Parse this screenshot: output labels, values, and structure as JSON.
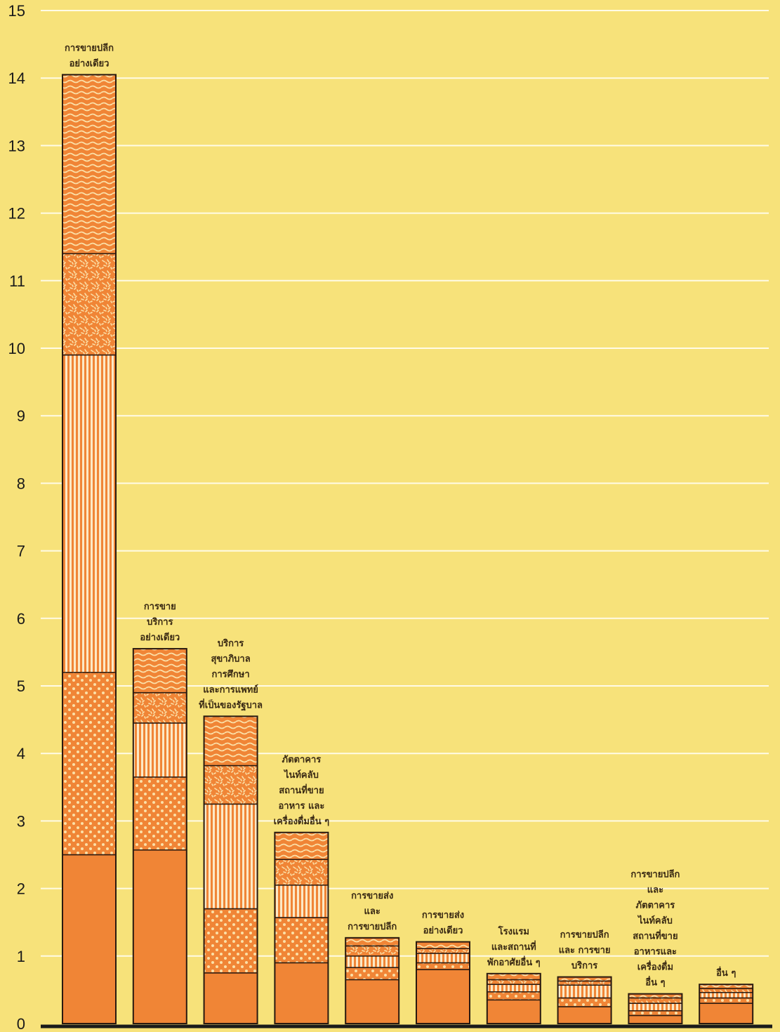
{
  "chart_data": {
    "type": "bar",
    "stacked": true,
    "ylim": [
      0,
      15
    ],
    "yticks": [
      "0",
      "1",
      "2",
      "3",
      "4",
      "5",
      "6",
      "7",
      "8",
      "9",
      "10",
      "11",
      "12",
      "13",
      "14",
      "15"
    ],
    "grid": true,
    "colors": {
      "background": "#f7e27a",
      "grid": "#fffbe6",
      "bar": "#f08536",
      "segment_line": "#2a1a10"
    },
    "categories": [
      [
        "การขายปลีก",
        "อย่างเดียว"
      ],
      [
        "การขาย",
        "บริการ",
        "อย่างเดียว"
      ],
      [
        "บริการ",
        "สุขาภิบาล",
        "การศึกษา",
        "และการแพทย์",
        "ที่เป็นของรัฐบาล"
      ],
      [
        "ภัตตาคาร",
        "ไนท์คลับ",
        "สถานที่ขาย",
        "อาหาร และ",
        "เครื่องดื่มอื่น ๆ"
      ],
      [
        "การขายส่ง",
        "และ",
        "การขายปลีก"
      ],
      [
        "การขายส่ง",
        "อย่างเดียว"
      ],
      [
        "โรงแรม",
        "และสถานที่",
        "พักอาศัยอื่น ๆ"
      ],
      [
        "การขายปลีก",
        "และ การขาย",
        "บริการ"
      ],
      [
        "การขายปลีก",
        "และ",
        "ภัตตาคาร",
        "ไนท์คลับ",
        "สถานที่ขาย",
        "อาหารและ",
        "เครื่องดื่ม",
        "อื่น ๆ"
      ],
      [
        "อื่น ๆ"
      ]
    ],
    "stacks": [
      [
        2.5,
        2.7,
        4.7,
        1.5,
        2.65
      ],
      [
        2.57,
        1.08,
        0.8,
        0.45,
        0.65
      ],
      [
        0.75,
        0.95,
        1.55,
        0.57,
        0.73
      ],
      [
        0.9,
        0.67,
        0.48,
        0.38,
        0.4
      ],
      [
        0.65,
        0.18,
        0.17,
        0.15,
        0.12
      ],
      [
        0.8,
        0.1,
        0.14,
        0.07,
        0.1
      ],
      [
        0.35,
        0.12,
        0.11,
        0.07,
        0.09
      ],
      [
        0.25,
        0.13,
        0.19,
        0.06,
        0.06
      ],
      [
        0.12,
        0.07,
        0.11,
        0.08,
        0.06
      ],
      [
        0.3,
        0.08,
        0.08,
        0.06,
        0.06
      ]
    ],
    "segment_patterns": [
      "solid",
      "dots",
      "vertical-stripes",
      "speckle",
      "waves"
    ]
  }
}
